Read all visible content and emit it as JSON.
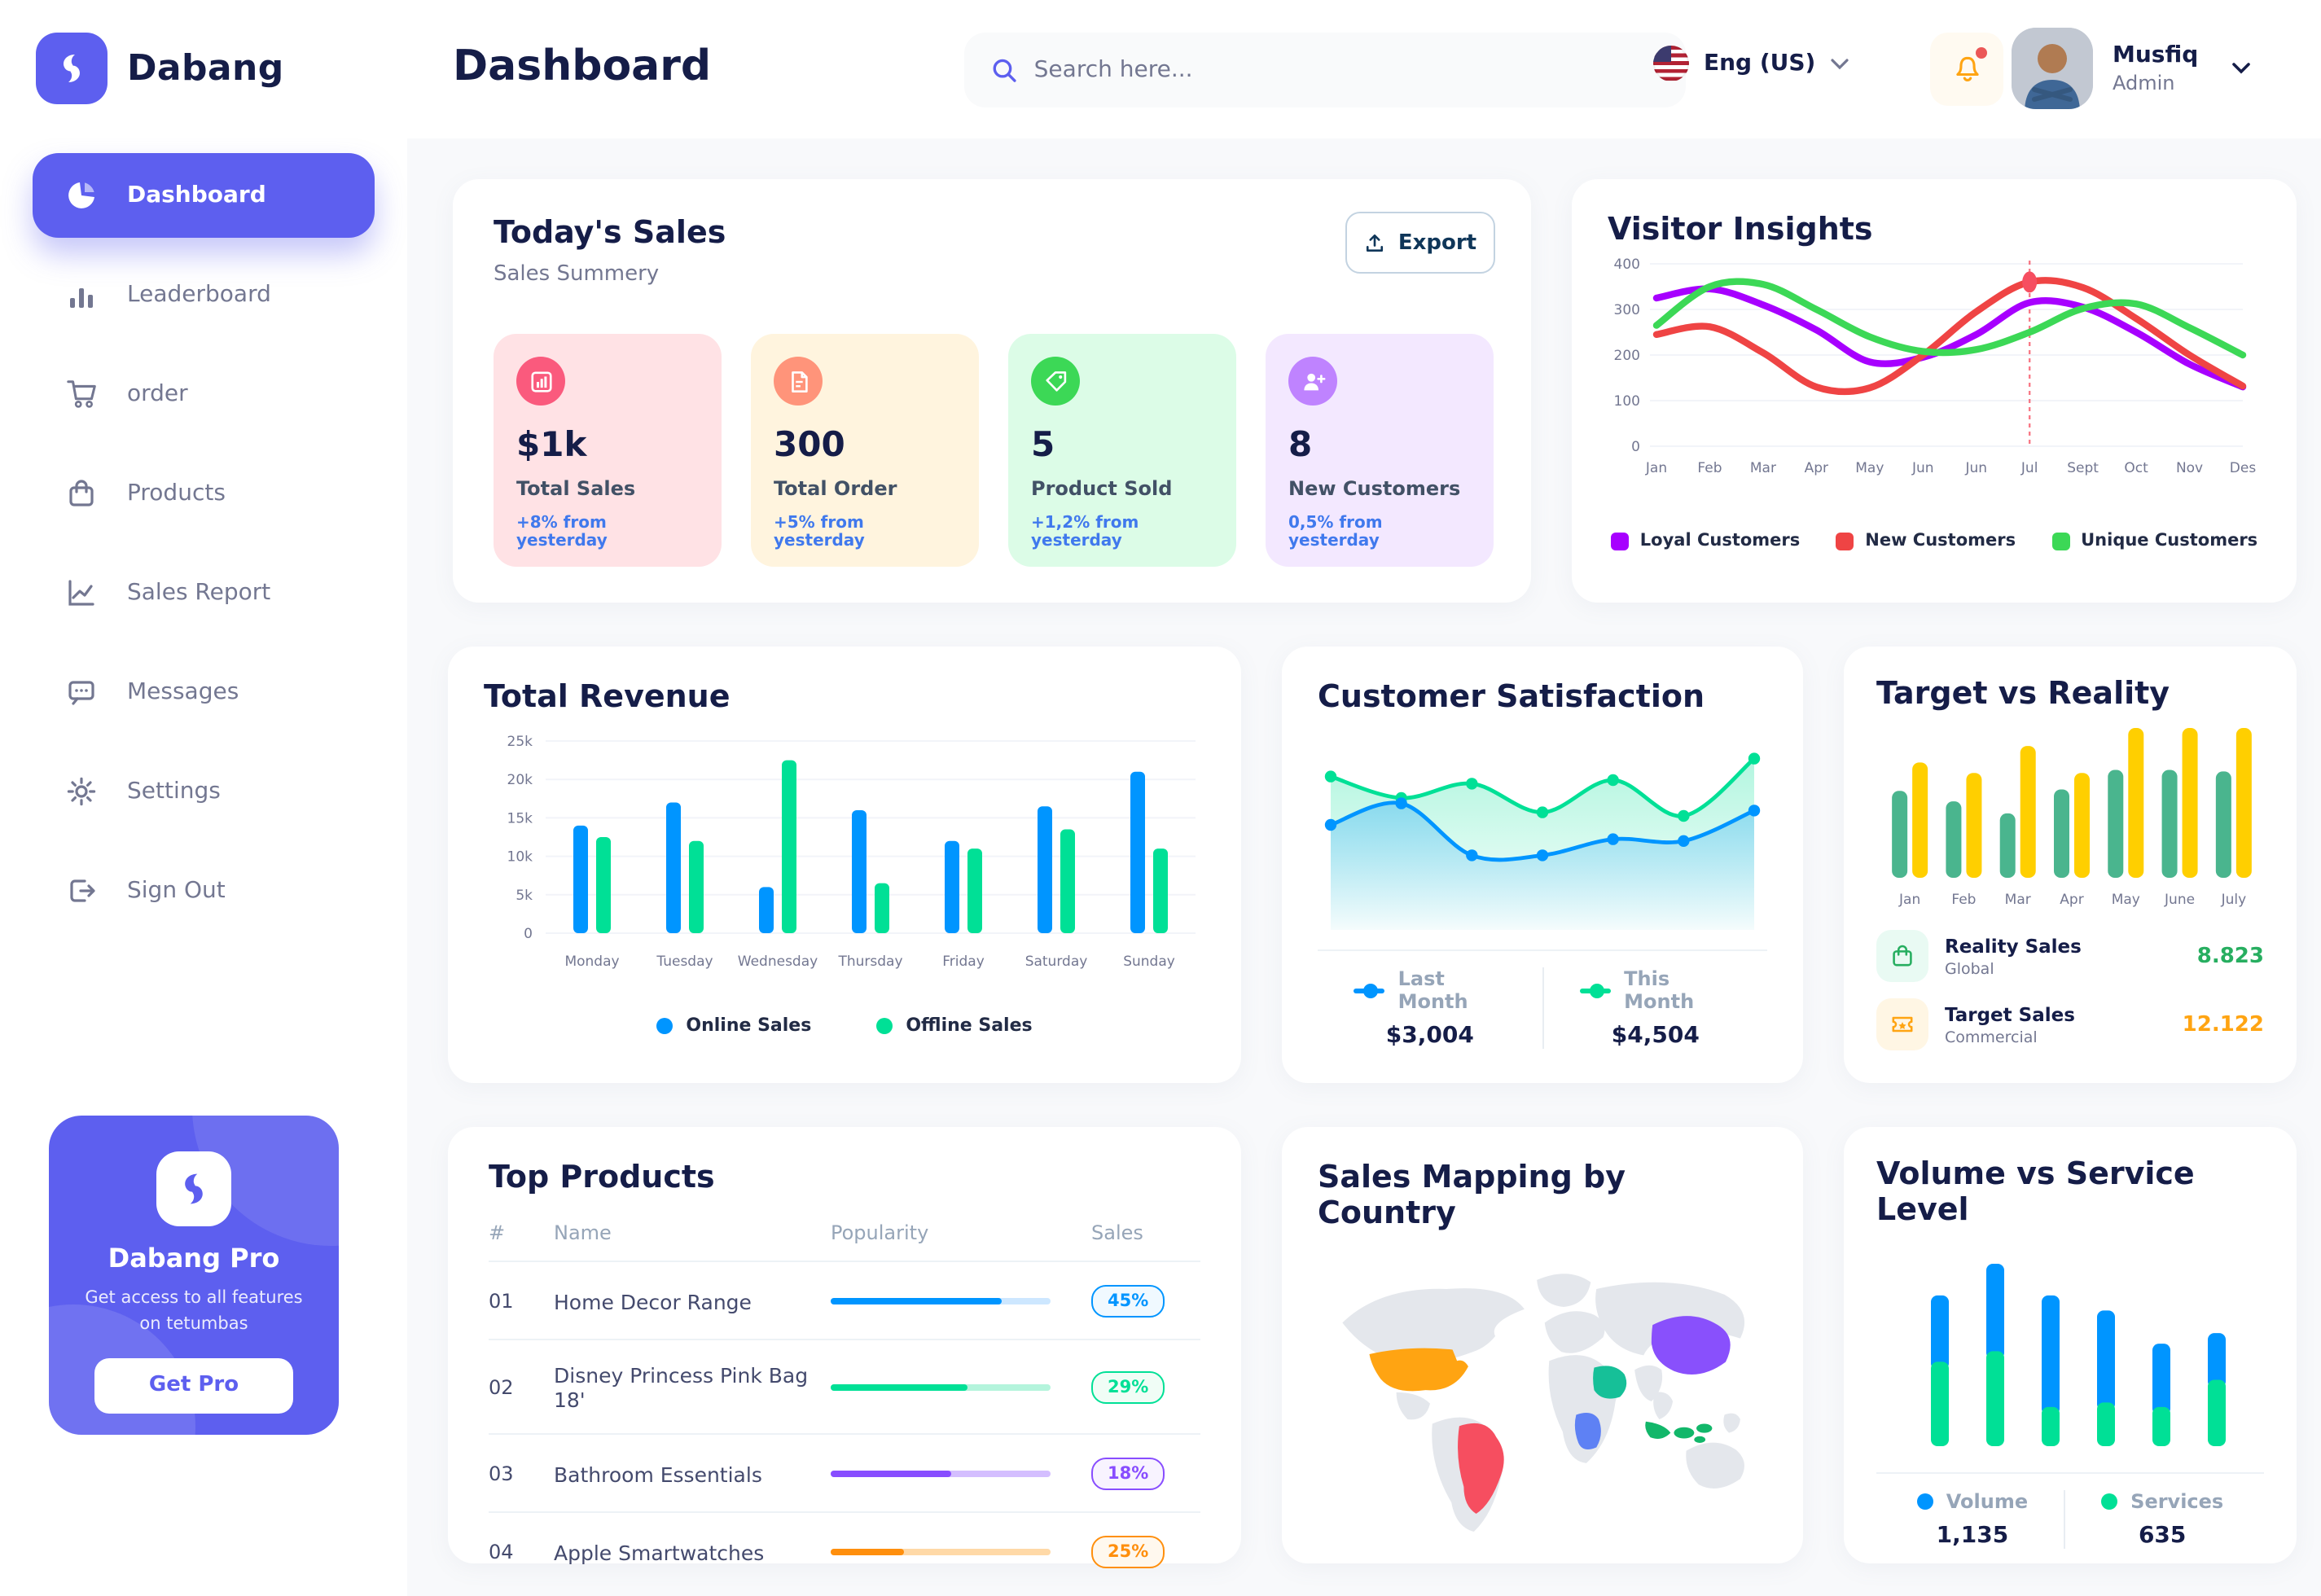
{
  "brand": {
    "name": "Dabang",
    "pro": {
      "title": "Dabang Pro",
      "description": "Get access to all features on tetumbas",
      "button_label": "Get Pro"
    }
  },
  "header": {
    "title": "Dashboard",
    "search_placeholder": "Search here...",
    "language": "Eng (US)",
    "user": {
      "name": "Musfiq",
      "role": "Admin"
    }
  },
  "sidebar": {
    "items": [
      {
        "label": "Dashboard",
        "icon": "pie-chart-icon",
        "active": true
      },
      {
        "label": "Leaderboard",
        "icon": "bar-chart-icon",
        "active": false
      },
      {
        "label": "order",
        "icon": "cart-icon",
        "active": false
      },
      {
        "label": "Products",
        "icon": "bag-icon",
        "active": false
      },
      {
        "label": "Sales Report",
        "icon": "line-chart-icon",
        "active": false
      },
      {
        "label": "Messages",
        "icon": "message-icon",
        "active": false
      },
      {
        "label": "Settings",
        "icon": "gear-icon",
        "active": false
      },
      {
        "label": "Sign Out",
        "icon": "sign-out-icon",
        "active": false
      }
    ]
  },
  "today_sales": {
    "title": "Today's Sales",
    "subtitle": "Sales Summery",
    "export_label": "Export",
    "cards": [
      {
        "value": "$1k",
        "label": "Total Sales",
        "delta": "+8% from yesterday",
        "bg": "#FFE2E5",
        "accent": "#FA5A7D",
        "icon": "chart-bars-icon"
      },
      {
        "value": "300",
        "label": "Total Order",
        "delta": "+5% from yesterday",
        "bg": "#FFF4DE",
        "accent": "#FF947A",
        "icon": "order-file-icon"
      },
      {
        "value": "5",
        "label": "Product Sold",
        "delta": "+1,2% from yesterday",
        "bg": "#DCFCE7",
        "accent": "#3CD856",
        "icon": "tag-icon"
      },
      {
        "value": "8",
        "label": "New Customers",
        "delta": "0,5% from yesterday",
        "bg": "#F3E8FF",
        "accent": "#BF83FF",
        "icon": "user-plus-icon"
      }
    ]
  },
  "chart_data": [
    {
      "id": "visitor_insights",
      "type": "line",
      "title": "Visitor Insights",
      "x": [
        "Jan",
        "Feb",
        "Mar",
        "Apr",
        "May",
        "Jun",
        "Jun",
        "Jul",
        "Sept",
        "Oct",
        "Nov",
        "Des"
      ],
      "ylim": [
        0,
        400
      ],
      "yticks": [
        0,
        100,
        200,
        300,
        400
      ],
      "grid": true,
      "legend_position": "bottom",
      "series": [
        {
          "name": "Loyal Customers",
          "color": "#A700FF",
          "values": [
            325,
            345,
            310,
            255,
            185,
            195,
            245,
            315,
            305,
            250,
            180,
            130
          ]
        },
        {
          "name": "New Customers",
          "color": "#EF4444",
          "values": [
            245,
            262,
            205,
            130,
            128,
            200,
            295,
            360,
            348,
            280,
            200,
            132
          ]
        },
        {
          "name": "Unique Customers",
          "color": "#3CD856",
          "values": [
            265,
            350,
            355,
            300,
            240,
            208,
            212,
            250,
            302,
            312,
            260,
            200
          ]
        }
      ],
      "highlight": {
        "x_index": 7,
        "series": "New Customers",
        "marker_color": "#F64E60"
      }
    },
    {
      "id": "total_revenue",
      "type": "bar",
      "title": "Total Revenue",
      "categories": [
        "Monday",
        "Tuesday",
        "Wednesday",
        "Thursday",
        "Friday",
        "Saturday",
        "Sunday"
      ],
      "ylim": [
        0,
        25000
      ],
      "ytick_labels": [
        "0",
        "5k",
        "10k",
        "15k",
        "20k",
        "25k"
      ],
      "grid": true,
      "legend_position": "bottom",
      "series": [
        {
          "name": "Online Sales",
          "color": "#0095FF",
          "values": [
            14000,
            17000,
            6000,
            16000,
            12000,
            16500,
            21000
          ]
        },
        {
          "name": "Offline Sales",
          "color": "#00E096",
          "values": [
            12500,
            12000,
            22500,
            6500,
            11000,
            13500,
            11000
          ]
        }
      ]
    },
    {
      "id": "customer_satisfaction",
      "type": "area",
      "title": "Customer Satisfaction",
      "ylim": [
        0,
        100
      ],
      "grid": false,
      "legend_position": "bottom",
      "series": [
        {
          "name": "Last Month",
          "color": "#0095FF",
          "total": "$3,004",
          "values": [
            55,
            67,
            38,
            38,
            47,
            46,
            63
          ]
        },
        {
          "name": "This Month",
          "color": "#00E096",
          "total": "$4,504",
          "values": [
            82,
            70,
            78,
            62,
            80,
            60,
            92
          ]
        }
      ]
    },
    {
      "id": "target_vs_reality",
      "type": "bar",
      "title": "Target vs Reality",
      "categories": [
        "Jan",
        "Feb",
        "Mar",
        "Apr",
        "May",
        "June",
        "July"
      ],
      "ylim": [
        0,
        100
      ],
      "grid": false,
      "legend_position": "bottom",
      "series": [
        {
          "name": "Reality Sales",
          "subtitle": "Global",
          "color": "#4AB58E",
          "value_color": "#27AE60",
          "tile_bg": "#E9FAF3",
          "display_total": "8.823",
          "icon": "shopping-bag-icon",
          "values": [
            58,
            51,
            43,
            59,
            72,
            72,
            71
          ]
        },
        {
          "name": "Target Sales",
          "subtitle": "Commercial",
          "color": "#FFCF00",
          "value_color": "#FFA412",
          "tile_bg": "#FFF6E4",
          "display_total": "12.122",
          "icon": "ticket-icon",
          "values": [
            77,
            70,
            88,
            70,
            100,
            100,
            100
          ]
        }
      ]
    },
    {
      "id": "volume_vs_service",
      "type": "bar",
      "stacked": true,
      "title": "Volume vs Service Level",
      "legend_position": "bottom",
      "grid": false,
      "series": [
        {
          "name": "Volume",
          "color": "#0095FF",
          "total": "1,135",
          "values": [
            44,
            58,
            74,
            61,
            42,
            31
          ]
        },
        {
          "name": "Services",
          "color": "#00E096",
          "total": "635",
          "values": [
            56,
            63,
            26,
            29,
            26,
            44
          ]
        }
      ]
    }
  ],
  "top_products": {
    "title": "Top Products",
    "columns": [
      "#",
      "Name",
      "Popularity",
      "Sales"
    ],
    "rows": [
      {
        "num": "01",
        "name": "Home Decor Range",
        "popularity": 78,
        "sales": "45%",
        "color": "#0095FF",
        "track": "#CDE7FF",
        "badge_bg": "#F0F9FF"
      },
      {
        "num": "02",
        "name": "Disney Princess Pink Bag 18'",
        "popularity": 62,
        "sales": "29%",
        "color": "#00E096",
        "track": "#B4F4DC",
        "badge_bg": "#F0FDF6"
      },
      {
        "num": "03",
        "name": "Bathroom Essentials",
        "popularity": 55,
        "sales": "18%",
        "color": "#884DFF",
        "track": "#D4BEFF",
        "badge_bg": "#F8F3FF"
      },
      {
        "num": "04",
        "name": "Apple Smartwatches",
        "popularity": 33,
        "sales": "25%",
        "color": "#FF8F0D",
        "track": "#FFD9A7",
        "badge_bg": "#FFF8EE"
      }
    ]
  },
  "sales_map": {
    "title": "Sales Mapping by Country",
    "countries": [
      {
        "id": "usa",
        "name": "United States",
        "color": "#FFA412"
      },
      {
        "id": "brazil",
        "name": "Brazil",
        "color": "#F64E60"
      },
      {
        "id": "saudi",
        "name": "Saudi Arabia",
        "color": "#16C098"
      },
      {
        "id": "congo",
        "name": "Congo",
        "color": "#5E81F4"
      },
      {
        "id": "china",
        "name": "China",
        "color": "#8950FC"
      },
      {
        "id": "indonesia",
        "name": "Indonesia",
        "color": "#12B76A"
      }
    ],
    "base_color": "#E4E7EC"
  }
}
